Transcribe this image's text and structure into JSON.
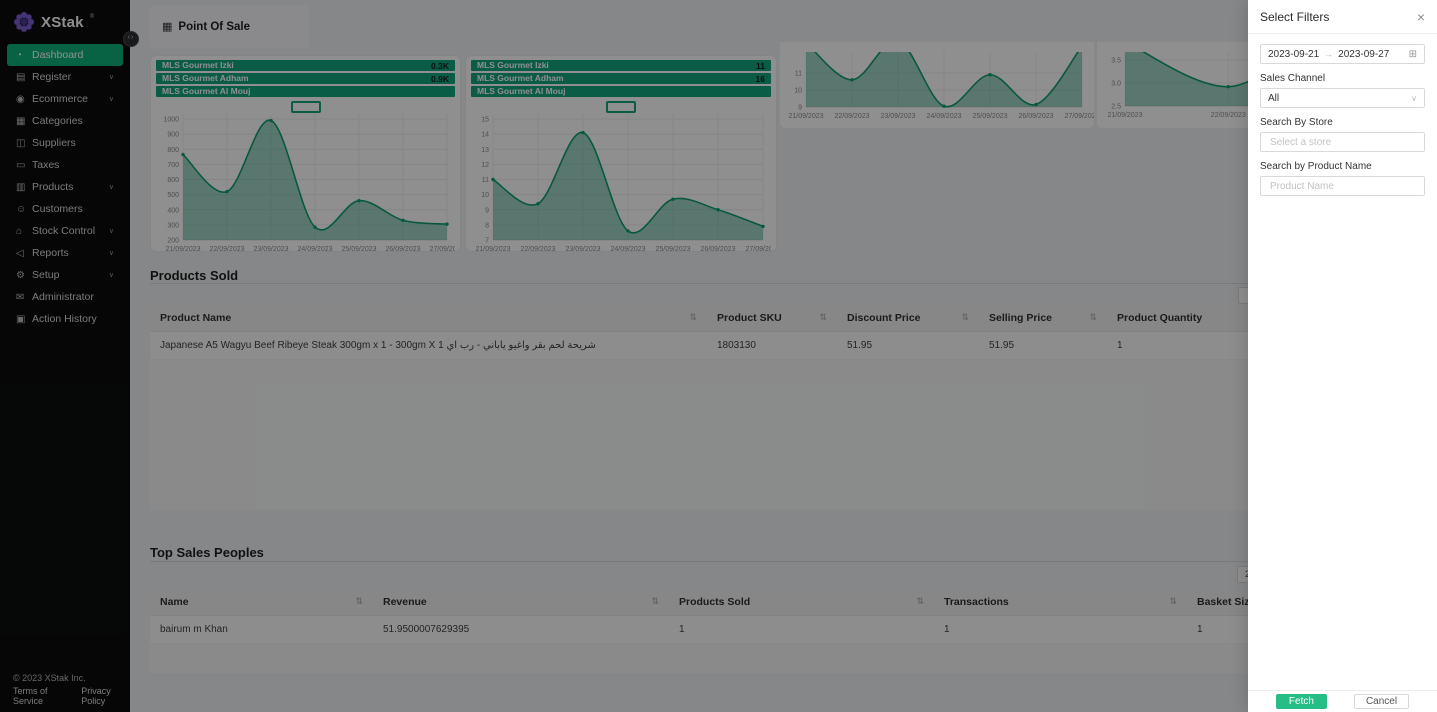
{
  "sidebar": {
    "logo_text": "XStak",
    "logo_mark": "®",
    "items": [
      {
        "label": "Dashboard",
        "icon": "dashboard-icon",
        "active": true,
        "expandable": false
      },
      {
        "label": "Register",
        "icon": "register-icon",
        "active": false,
        "expandable": true
      },
      {
        "label": "Ecommerce",
        "icon": "ecommerce-icon",
        "active": false,
        "expandable": true
      },
      {
        "label": "Categories",
        "icon": "categories-icon",
        "active": false,
        "expandable": false
      },
      {
        "label": "Suppliers",
        "icon": "suppliers-icon",
        "active": false,
        "expandable": false
      },
      {
        "label": "Taxes",
        "icon": "taxes-icon",
        "active": false,
        "expandable": false
      },
      {
        "label": "Products",
        "icon": "products-icon",
        "active": false,
        "expandable": true
      },
      {
        "label": "Customers",
        "icon": "customers-icon",
        "active": false,
        "expandable": false
      },
      {
        "label": "Stock Control",
        "icon": "stock-control-icon",
        "active": false,
        "expandable": true
      },
      {
        "label": "Reports",
        "icon": "reports-icon",
        "active": false,
        "expandable": true
      },
      {
        "label": "Setup",
        "icon": "setup-icon",
        "active": false,
        "expandable": true
      },
      {
        "label": "Administrator",
        "icon": "administrator-icon",
        "active": false,
        "expandable": false
      },
      {
        "label": "Action History",
        "icon": "action-history-icon",
        "active": false,
        "expandable": false
      }
    ],
    "footer": {
      "copyright": "© 2023 XStak Inc.",
      "links": [
        "Terms of Service",
        "Privacy Policy"
      ]
    }
  },
  "header": {
    "tab_label": "Point Of Sale"
  },
  "chart_data": [
    {
      "type": "area",
      "legend": [
        {
          "label": "MLS Gourmet Izki",
          "value": "0.3K"
        },
        {
          "label": "MLS Gourmet Adham",
          "value": "0.9K"
        },
        {
          "label": "MLS Gourmet Al Mouj",
          "value": ""
        }
      ],
      "x": [
        "21/09/2023",
        "22/09/2023",
        "23/09/2023",
        "24/09/2023",
        "25/09/2023",
        "26/09/2023",
        "27/09/2023"
      ],
      "values": [
        765,
        520,
        990,
        285,
        460,
        330,
        305
      ],
      "ylim": [
        200,
        1000
      ],
      "yticks": [
        "1000",
        "900",
        "800",
        "700",
        "600",
        "500",
        "400",
        "300",
        "200"
      ]
    },
    {
      "type": "area",
      "legend": [
        {
          "label": "MLS Gourmet Izki",
          "value": "11"
        },
        {
          "label": "MLS Gourmet Adham",
          "value": "16"
        },
        {
          "label": "MLS Gourmet Al Mouj",
          "value": ""
        }
      ],
      "x": [
        "21/09/2023",
        "22/09/2023",
        "23/09/2023",
        "24/09/2023",
        "25/09/2023",
        "26/09/2023",
        "27/09/2023"
      ],
      "values": [
        11,
        9.4,
        14.1,
        7.6,
        9.7,
        9,
        7.9
      ],
      "ylim": [
        7,
        15
      ],
      "yticks": [
        "15",
        "14",
        "13",
        "12",
        "11",
        "10",
        "9",
        "8",
        "7"
      ]
    },
    {
      "type": "area",
      "note": "partially visible, top cut off",
      "x": [
        "21/09/2023",
        "22/09/2023",
        "23/09/2023",
        "24/09/2023",
        "25/09/2023",
        "26/09/2023",
        "27/09/2023"
      ],
      "values": [
        12.8,
        10.6,
        12.9,
        9.05,
        10.9,
        9.15,
        12.6
      ],
      "ylim": [
        9,
        12.24
      ],
      "yticks": [
        "11",
        "10",
        "9"
      ]
    },
    {
      "type": "area",
      "note": "partially visible, top and right cut off",
      "x": [
        "21/09/2023",
        "22/09/2023",
        "23/09/2023",
        "24/09/2023",
        "25/09/2023",
        "26/09/2023",
        "27/09/2023"
      ],
      "values": [
        3.9,
        2.92,
        4.0,
        2.85,
        3.7,
        3.0,
        3.8
      ],
      "ylim": [
        2.5,
        3.674
      ],
      "yticks": [
        "3.5",
        "3.0",
        "2.5"
      ]
    }
  ],
  "products_sold": {
    "title": "Products Sold",
    "columns": [
      "Product Name",
      "Product SKU",
      "Discount Price",
      "Selling Price",
      "Product Quantity"
    ],
    "rows": [
      [
        "Japanese A5 Wagyu Beef Ribeye Steak 300gm x 1 - 300gm X 1 شريحة لحم بقر واغيو ياباني - رب اي",
        "1803130",
        "51.95",
        "51.95",
        "1"
      ]
    ]
  },
  "top_sales": {
    "title": "Top Sales Peoples",
    "columns": [
      "Name",
      "Revenue",
      "Products Sold",
      "Transactions",
      "Basket Size"
    ],
    "rows": [
      [
        "bairum m Khan",
        "51.9500007629395",
        "1",
        "1",
        "1"
      ]
    ],
    "page_size": "20"
  },
  "drawer": {
    "title": "Select Filters",
    "close_icon": "×",
    "date_start": "2023-09-21",
    "date_end": "2023-09-27",
    "sales_channel_label": "Sales Channel",
    "sales_channel_value": "All",
    "store_label": "Search By Store",
    "store_placeholder": "Select a store",
    "product_label": "Search by Product Name",
    "product_placeholder": "Product Name",
    "fetch_label": "Fetch",
    "cancel_label": "Cancel"
  },
  "colors": {
    "accent_green": "#12a47d",
    "line_green": "#0f9d72",
    "sidebar_active_green": "#0db179",
    "fetch_button_green": "#27bd87",
    "logo_purple": "#7b5ed1"
  }
}
